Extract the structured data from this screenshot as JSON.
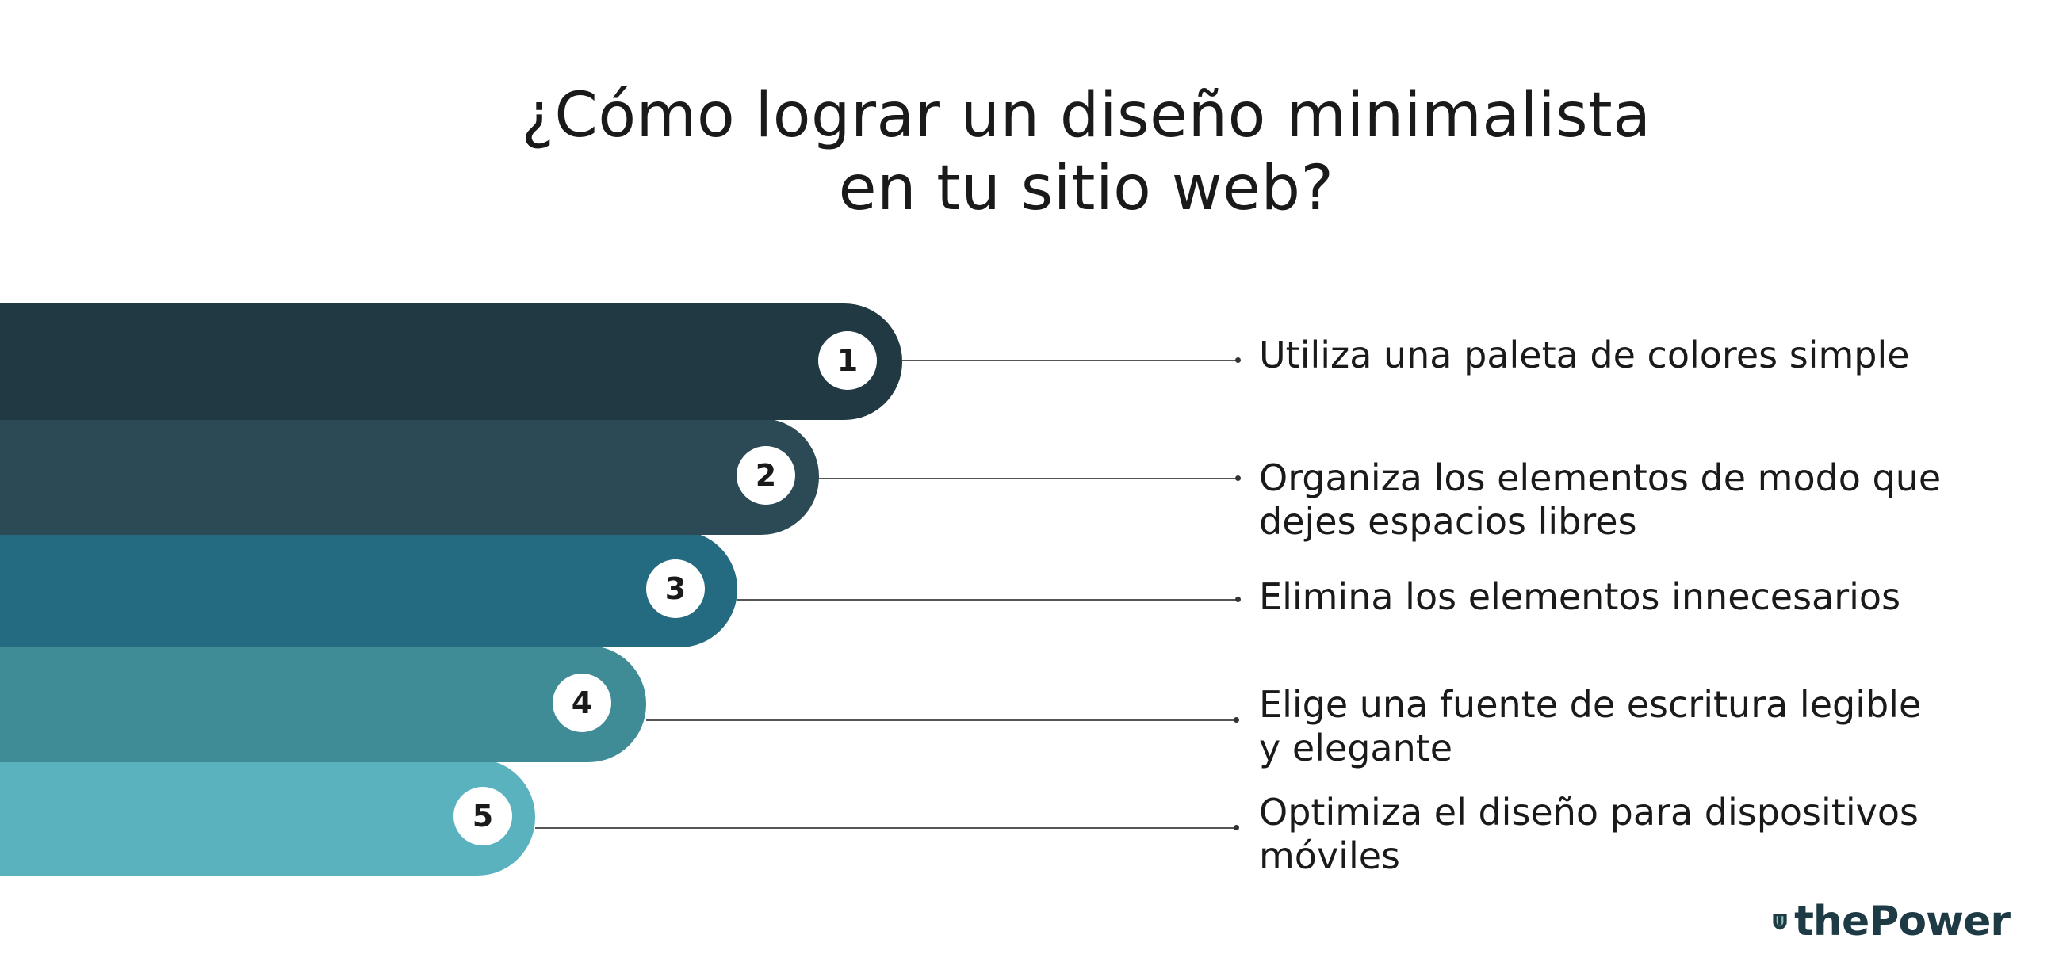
{
  "title": {
    "line1": "¿Cómo lograr un diseño minimalista",
    "line2": "en tu sitio web?"
  },
  "steps": [
    {
      "number": "1",
      "text": "Utiliza una paleta de colores simple",
      "color": "#213942"
    },
    {
      "number": "2",
      "text": "Organiza los elementos de modo que\ndejes espacios libres",
      "color": "#2b4a55"
    },
    {
      "number": "3",
      "text": "Elimina los elementos innecesarios",
      "color": "#246a80"
    },
    {
      "number": "4",
      "text": "Elige una fuente de escritura legible\ny elegante",
      "color": "#3f8b96"
    },
    {
      "number": "5",
      "text": "Optimiza el diseño para dispositivos\nmóviles",
      "color": "#5ab2bf"
    }
  ],
  "logo": {
    "text": "thePower",
    "icon": "shield-logo-icon",
    "colors": {
      "dark": "#1e3b45",
      "accent": "#8fc9bd"
    }
  }
}
